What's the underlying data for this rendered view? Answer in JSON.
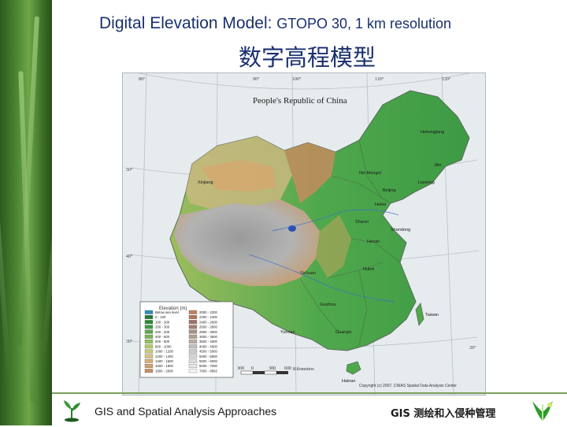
{
  "slide": {
    "title_main": "Digital Elevation Model: ",
    "title_detail": "GTOPO 30, 1 km resolution",
    "subtitle_cn": "数字高程模型"
  },
  "map": {
    "heading": "People's Republic of China",
    "longitude_labels": [
      "80°",
      "90°",
      "100°",
      "110°",
      "120°"
    ],
    "latitude_labels": [
      "50°",
      "40°",
      "30°",
      "20°"
    ],
    "province_labels": [
      "Heilongjiang",
      "Xinjiang",
      "Nei Mongol",
      "Jilin",
      "Liaoning",
      "Beijing",
      "Hebei",
      "Shanxi",
      "Shandong",
      "Henan",
      "Hubei",
      "Sichuan",
      "Guizhou",
      "Yunnan",
      "Guangxi",
      "Hainan",
      "Taiwan"
    ],
    "legend_title": "Elevation (m)",
    "legend_items": [
      "Below sea level",
      "0 - 100",
      "100 - 200",
      "200 - 300",
      "300 - 400",
      "400 - 600",
      "600 - 800",
      "800 - 1000",
      "1000 - 1200",
      "1200 - 1400",
      "1400 - 1600",
      "1600 - 1800",
      "1800 - 2000",
      "2000 - 2200",
      "2200 - 2400",
      "2400 - 2600",
      "2600 - 2800",
      "2800 - 3000",
      "3000 - 3500",
      "3500 - 4000",
      "4000 - 4500",
      "4500 - 5000",
      "5000 - 5500",
      "5500 - 6000",
      "6000 - 7000",
      "7000 - 8892"
    ],
    "scale_labels": [
      "300",
      "0",
      "300",
      "600"
    ],
    "scale_unit": "Kilometers",
    "credit": "Copyright (c) 2007, CNIAS Spatial Data Analysis Center"
  },
  "footer": {
    "left_text": "GIS and Spatial Analysis Approaches",
    "right_text": "GIS 测绘和入侵种管理"
  },
  "colors": {
    "title": "#1a2f6e",
    "lowland": "#3f9a45",
    "midland": "#b8c47a",
    "highland": "#c79a6a",
    "plateau": "#a9a9a9",
    "water": "#9fc3d8"
  }
}
